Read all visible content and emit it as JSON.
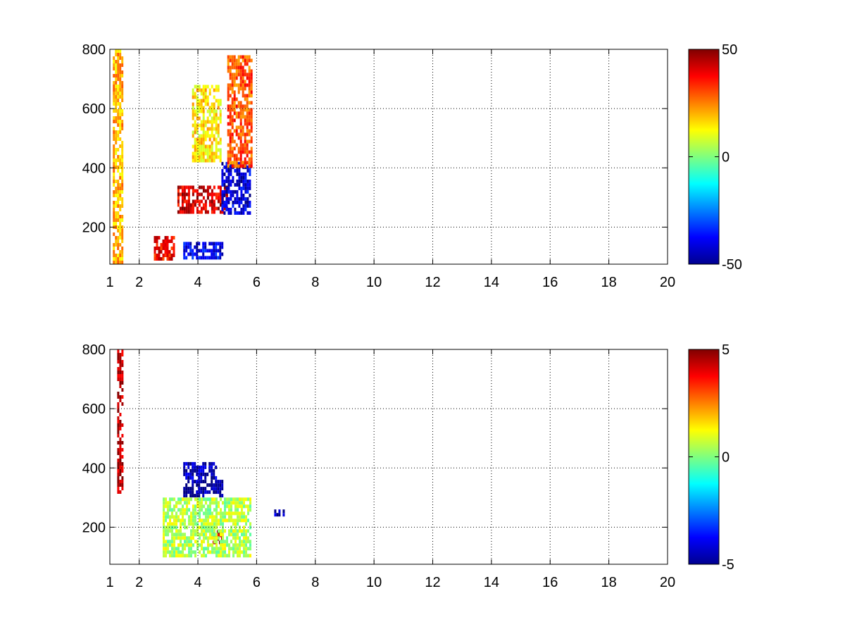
{
  "chart_data": [
    {
      "type": "heatmap",
      "title": "",
      "xlabel": "",
      "ylabel": "",
      "xlim": [
        1,
        20
      ],
      "ylim": [
        75,
        800
      ],
      "x_ticks": [
        1,
        2,
        4,
        6,
        8,
        10,
        12,
        14,
        16,
        18,
        20
      ],
      "y_ticks": [
        200,
        400,
        600,
        800
      ],
      "x_tick_labels": [
        "1",
        "2",
        "4",
        "6",
        "8",
        "10",
        "12",
        "14",
        "16",
        "18",
        "20"
      ],
      "y_tick_labels": [
        "200",
        "400",
        "600",
        "800"
      ],
      "grid": true,
      "colormap": "jet",
      "clim": [
        -50,
        50
      ],
      "colorbar_ticks": [
        -50,
        0,
        50
      ],
      "colorbar_tick_labels": [
        "-50",
        "0",
        "50"
      ],
      "features": [
        {
          "x": [
            1.1,
            1.4
          ],
          "y": [
            75,
            800
          ],
          "value": 20
        },
        {
          "x": [
            2.5,
            3.2
          ],
          "y": [
            90,
            170
          ],
          "value": 38
        },
        {
          "x": [
            3.5,
            4.9
          ],
          "y": [
            100,
            150
          ],
          "value": -40
        },
        {
          "x": [
            3.3,
            5.0
          ],
          "y": [
            250,
            340
          ],
          "value": 42
        },
        {
          "x": [
            4.8,
            5.8
          ],
          "y": [
            250,
            420
          ],
          "value": -42
        },
        {
          "x": [
            5.0,
            5.8
          ],
          "y": [
            400,
            780
          ],
          "value": 30
        },
        {
          "x": [
            3.8,
            4.8
          ],
          "y": [
            420,
            680
          ],
          "value": 15
        }
      ]
    },
    {
      "type": "heatmap",
      "title": "",
      "xlabel": "",
      "ylabel": "",
      "xlim": [
        1,
        20
      ],
      "ylim": [
        75,
        800
      ],
      "x_ticks": [
        1,
        2,
        4,
        6,
        8,
        10,
        12,
        14,
        16,
        18,
        20
      ],
      "y_ticks": [
        200,
        400,
        600,
        800
      ],
      "x_tick_labels": [
        "1",
        "2",
        "4",
        "6",
        "8",
        "10",
        "12",
        "14",
        "16",
        "18",
        "20"
      ],
      "y_tick_labels": [
        "200",
        "400",
        "600",
        "800"
      ],
      "grid": true,
      "colormap": "jet",
      "clim": [
        -5,
        5
      ],
      "colorbar_ticks": [
        -5,
        0,
        5
      ],
      "colorbar_tick_labels": [
        "-5",
        "0",
        "5"
      ],
      "features": [
        {
          "x": [
            1.25,
            1.4
          ],
          "y": [
            320,
            800
          ],
          "value": 4.5
        },
        {
          "x": [
            3.5,
            4.8
          ],
          "y": [
            310,
            360
          ],
          "value": -4.8
        },
        {
          "x": [
            3.5,
            4.6
          ],
          "y": [
            370,
            420
          ],
          "value": -4.5
        },
        {
          "x": [
            4.5,
            4.8
          ],
          "y": [
            150,
            190
          ],
          "value": 4.5
        },
        {
          "x": [
            6.6,
            6.9
          ],
          "y": [
            240,
            260
          ],
          "value": -4.5
        },
        {
          "x": [
            2.8,
            5.8
          ],
          "y": [
            100,
            300
          ],
          "value": 0.5
        }
      ]
    }
  ]
}
